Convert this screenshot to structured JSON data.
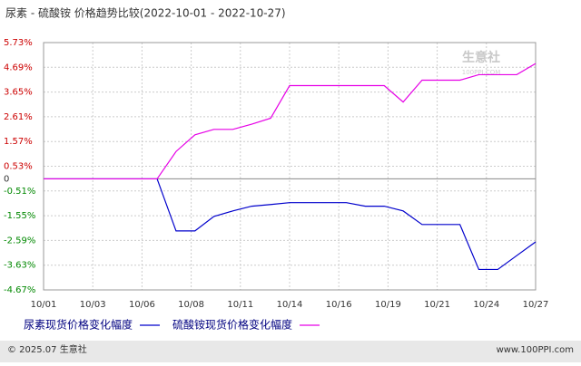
{
  "chart_data": {
    "type": "line",
    "title": "尿素 - 硫酸铵 价格趋势比较(2022-10-01 - 2022-10-27)",
    "categories": [
      "10/01",
      null,
      null,
      null,
      null,
      null,
      null,
      null,
      null,
      null,
      null,
      null,
      null,
      null,
      null,
      null,
      null,
      null,
      null,
      null,
      null,
      null,
      null,
      null,
      null,
      null,
      "10/27"
    ],
    "xticks": [
      {
        "value": 0,
        "label": "10/01"
      },
      {
        "value": 2.6,
        "label": "10/03"
      },
      {
        "value": 5.2,
        "label": "10/06"
      },
      {
        "value": 7.8,
        "label": "10/08"
      },
      {
        "value": 10.4,
        "label": "10/11"
      },
      {
        "value": 13,
        "label": "10/14"
      },
      {
        "value": 15.6,
        "label": "10/16"
      },
      {
        "value": 18.2,
        "label": "10/19"
      },
      {
        "value": 20.8,
        "label": "10/21"
      },
      {
        "value": 23.4,
        "label": "10/24"
      },
      {
        "value": 26,
        "label": "10/27"
      }
    ],
    "ylim": [
      -4.67,
      5.73
    ],
    "yticks": [
      {
        "value": 5.73,
        "label": "5.73%"
      },
      {
        "value": 4.69,
        "label": "4.69%"
      },
      {
        "value": 3.65,
        "label": "3.65%"
      },
      {
        "value": 2.61,
        "label": "2.61%"
      },
      {
        "value": 1.57,
        "label": "1.57%"
      },
      {
        "value": 0.53,
        "label": "0.53%"
      },
      0,
      {
        "value": -0.51,
        "label": "-0.51%"
      },
      {
        "value": -1.55,
        "label": "-1.55%"
      },
      {
        "value": -2.59,
        "label": "-2.59%"
      },
      {
        "value": -3.63,
        "label": "-3.63%"
      },
      {
        "value": -4.67,
        "label": "-4.67%"
      }
    ],
    "grid": true,
    "series": [
      {
        "name": "尿素现货价格变化幅度",
        "color": "#0000cc",
        "values": [
          0,
          0,
          0,
          0,
          0,
          0,
          0,
          -2.19,
          -2.19,
          -1.58,
          -1.35,
          -1.15,
          -1.08,
          -1.0,
          -1.0,
          -1.0,
          -1.0,
          -1.15,
          -1.15,
          -1.35,
          -1.92,
          -1.92,
          -1.92,
          -3.81,
          -3.81,
          -3.23,
          -2.65
        ]
      },
      {
        "name": "硫酸铵现货价格变化幅度",
        "color": "#e600e6",
        "values": [
          0,
          0,
          0,
          0,
          0,
          0,
          0,
          1.15,
          1.85,
          2.08,
          2.08,
          2.3,
          2.55,
          3.92,
          3.92,
          3.92,
          3.92,
          3.92,
          3.92,
          3.23,
          4.15,
          4.15,
          4.15,
          4.38,
          4.38,
          4.38,
          4.85
        ]
      }
    ],
    "watermark": [
      "生意社",
      "100PPI.COM"
    ],
    "footer_left": "© 2025.07 生意社",
    "footer_right": "www.100PPI.com"
  }
}
